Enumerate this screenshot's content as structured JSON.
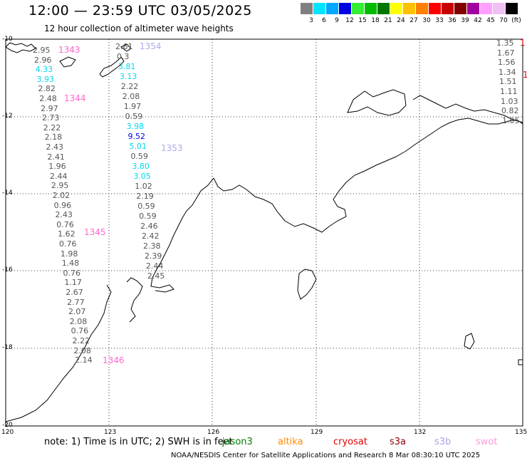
{
  "header": {
    "title": "12:00 — 23:59 UTC 03/05/2025",
    "subtitle": "12 hour collection of altimeter wave heights"
  },
  "color_scale": {
    "labels": [
      "3",
      "6",
      "9",
      "12",
      "15",
      "18",
      "21",
      "24",
      "27",
      "30",
      "33",
      "36",
      "39",
      "42",
      "45",
      "70",
      "(ft)"
    ],
    "colors": [
      "#808080",
      "#00e5ff",
      "#00a8ff",
      "#0000e0",
      "#33ee33",
      "#00bb00",
      "#007700",
      "#ffff00",
      "#ffc000",
      "#ff8000",
      "#ff0000",
      "#c80000",
      "#800000",
      "#a000a0",
      "#ffa0ff",
      "#f0c0f0",
      "#000000"
    ]
  },
  "axes": {
    "y_ticks": [
      "-10",
      "-12",
      "-14",
      "-16",
      "-18",
      "-20"
    ],
    "x_ticks": [
      "120",
      "123",
      "126",
      "129",
      "132",
      "135"
    ]
  },
  "notes": {
    "note_text": "note: 1) Time is in UTC; 2) SWH is in feet",
    "footer": "NOAA/NESDIS Center for Satellite Applications and Research    8 Mar 08:30:10 UTC 2025"
  },
  "satellites": [
    {
      "name": "jason3",
      "color": "#008000"
    },
    {
      "name": "altika",
      "color": "#ff8c00"
    },
    {
      "name": "cryosat",
      "color": "#e00000"
    },
    {
      "name": "s3a",
      "color": "#8b0000"
    },
    {
      "name": "s3b",
      "color": "#b0a0e0"
    },
    {
      "name": "swot",
      "color": "#ff99dd"
    }
  ],
  "pass_labels": [
    {
      "text": "1343",
      "color": "#ff66cc"
    },
    {
      "text": "1344",
      "color": "#ff66cc"
    },
    {
      "text": "1345",
      "color": "#ff66cc"
    },
    {
      "text": "1346",
      "color": "#ff66cc"
    },
    {
      "text": "1354",
      "color": "#aaaaee"
    },
    {
      "text": "1353",
      "color": "#aaaaee"
    },
    {
      "text": "1",
      "color": "#e00000"
    },
    {
      "text": "1",
      "color": "#e00000"
    }
  ],
  "observations": {
    "track_a": [
      "2.95",
      "2.96",
      "4.33",
      "3.93",
      "2.82",
      "2.48",
      "2.97",
      "2.73",
      "2.22",
      "2.18",
      "2.43",
      "2.41",
      "1.96",
      "2.44",
      "2.95",
      "2.02",
      "0.96",
      "2.43",
      "0.76",
      "1.62",
      "0.76",
      "1.98",
      "1.48",
      "0.76",
      "1.17",
      "2.67",
      "2.77",
      "2.07",
      "2.08",
      "0.76",
      "2.22",
      "2.08",
      "2.14"
    ],
    "track_b": [
      "2.61",
      "0.3",
      "3.81",
      "3.13",
      "2.22",
      "2.08",
      "1.97",
      "0.59",
      "3.98",
      "9.52",
      "5.01",
      "0.59",
      "3.80",
      "3.05",
      "1.02",
      "2.19",
      "0.59",
      "0.59",
      "2.46",
      "2.42",
      "2.38",
      "2.39",
      "2.44",
      "2.45"
    ],
    "track_c": [
      "1.35",
      "1.67",
      "1.56",
      "1.34",
      "1.51",
      "1.11",
      "1.03",
      "0.82",
      "1.05"
    ]
  }
}
